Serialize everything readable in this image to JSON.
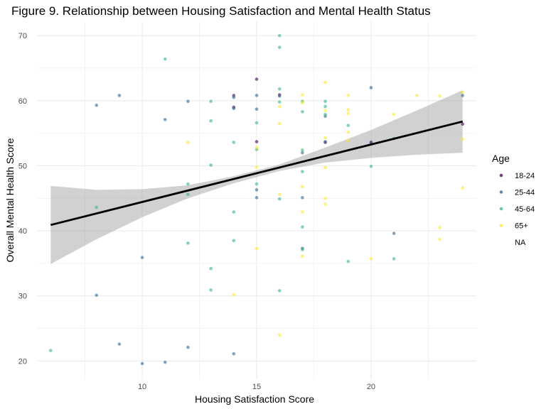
{
  "chart_data": {
    "type": "scatter",
    "title": "Figure 9. Relationship between Housing Satisfaction and Mental Health Status",
    "xlabel": "Housing Satisfaction Score",
    "ylabel": "Overall Mental Health Score",
    "xlim": [
      5.4,
      24.6
    ],
    "ylim": [
      17.2,
      72.2
    ],
    "xticks": [
      10,
      15,
      20
    ],
    "yticks": [
      20,
      30,
      40,
      50,
      60,
      70
    ],
    "grid": true,
    "legend": {
      "title": "Age",
      "position": "right",
      "entries": [
        {
          "label": "18-24",
          "color": "#440154"
        },
        {
          "label": "25-44",
          "color": "#31688e"
        },
        {
          "label": "45-64",
          "color": "#35b779"
        },
        {
          "label": "65+",
          "color": "#fde725"
        },
        {
          "label": "NA",
          "color": ""
        }
      ]
    },
    "regression": {
      "line": [
        [
          6,
          40.9
        ],
        [
          24,
          56.8
        ]
      ],
      "band": {
        "x": [
          6,
          8,
          10,
          12,
          14,
          16,
          18,
          20,
          22,
          24
        ],
        "lower": [
          34.9,
          38.7,
          42.1,
          45.0,
          47.3,
          49.2,
          50.5,
          51.2,
          51.7,
          52.0
        ],
        "upper": [
          46.9,
          46.3,
          46.4,
          47.0,
          48.4,
          50.2,
          52.8,
          55.5,
          58.5,
          61.6
        ]
      }
    },
    "series": [
      {
        "name": "18-24",
        "color": "#440154",
        "points": [
          [
            14,
            60.8
          ],
          [
            14,
            59.0
          ],
          [
            15,
            63.3
          ],
          [
            15,
            53.7
          ],
          [
            16,
            60.9
          ],
          [
            18,
            53.6
          ],
          [
            20,
            53.6
          ],
          [
            24,
            56.4
          ]
        ]
      },
      {
        "name": "25-44",
        "color": "#31688e",
        "points": [
          [
            8,
            30.1
          ],
          [
            8,
            59.3
          ],
          [
            9,
            60.8
          ],
          [
            9,
            22.6
          ],
          [
            10,
            35.9
          ],
          [
            10,
            19.6
          ],
          [
            11,
            19.8
          ],
          [
            11,
            57.1
          ],
          [
            12,
            59.9
          ],
          [
            12,
            22.1
          ],
          [
            14,
            60.5
          ],
          [
            14,
            58.8
          ],
          [
            14,
            21.1
          ],
          [
            15,
            60.8
          ],
          [
            15,
            58.7
          ],
          [
            15,
            46.3
          ],
          [
            15,
            45.1
          ],
          [
            16,
            60.7
          ],
          [
            17,
            52.0
          ],
          [
            17,
            45.1
          ],
          [
            17,
            37.3
          ],
          [
            18,
            57.6
          ],
          [
            18,
            53.7
          ],
          [
            20,
            62.0
          ],
          [
            20,
            53.6
          ],
          [
            21,
            39.6
          ],
          [
            24,
            60.8
          ]
        ]
      },
      {
        "name": "45-64",
        "color": "#35b779",
        "points": [
          [
            6,
            21.6
          ],
          [
            8,
            43.6
          ],
          [
            11,
            66.4
          ],
          [
            12,
            47.2
          ],
          [
            12,
            45.6
          ],
          [
            12,
            38.1
          ],
          [
            13,
            59.9
          ],
          [
            13,
            56.9
          ],
          [
            13,
            50.1
          ],
          [
            13,
            34.2
          ],
          [
            13,
            30.9
          ],
          [
            14,
            53.6
          ],
          [
            14,
            42.9
          ],
          [
            14,
            38.5
          ],
          [
            15,
            56.6
          ],
          [
            15,
            52.5
          ],
          [
            15,
            47.2
          ],
          [
            16,
            70.0
          ],
          [
            16,
            68.2
          ],
          [
            16,
            61.8
          ],
          [
            16,
            59.8
          ],
          [
            16,
            44.9
          ],
          [
            16,
            30.8
          ],
          [
            17,
            59.9
          ],
          [
            17,
            58.3
          ],
          [
            17,
            52.4
          ],
          [
            17,
            49.1
          ],
          [
            17,
            40.6
          ],
          [
            17,
            37.1
          ],
          [
            18,
            59.9
          ],
          [
            18,
            59.1
          ],
          [
            18,
            57.9
          ],
          [
            19,
            56.2
          ],
          [
            19,
            35.3
          ],
          [
            20,
            49.9
          ],
          [
            21,
            35.7
          ],
          [
            21,
            54.2
          ]
        ]
      },
      {
        "name": "65+",
        "color": "#fde725",
        "points": [
          [
            12,
            53.6
          ],
          [
            14,
            30.2
          ],
          [
            15,
            52.8
          ],
          [
            15,
            49.8
          ],
          [
            15,
            37.3
          ],
          [
            16,
            59.1
          ],
          [
            16,
            56.5
          ],
          [
            16,
            45.6
          ],
          [
            16,
            24.0
          ],
          [
            17,
            60.9
          ],
          [
            17,
            59.7
          ],
          [
            17,
            46.8
          ],
          [
            17,
            42.9
          ],
          [
            17,
            36.1
          ],
          [
            18,
            62.8
          ],
          [
            18,
            58.5
          ],
          [
            18,
            54.3
          ],
          [
            18,
            49.7
          ],
          [
            18,
            45.0
          ],
          [
            18,
            44.1
          ],
          [
            19,
            60.8
          ],
          [
            19,
            58.6
          ],
          [
            19,
            58.0
          ],
          [
            19,
            55.2
          ],
          [
            19,
            53.9
          ],
          [
            20,
            35.7
          ],
          [
            21,
            57.9
          ],
          [
            22,
            60.8
          ],
          [
            23,
            60.7
          ],
          [
            23,
            40.5
          ],
          [
            23,
            38.7
          ],
          [
            24,
            61.3
          ],
          [
            24,
            54.1
          ],
          [
            24,
            46.6
          ]
        ]
      }
    ]
  }
}
